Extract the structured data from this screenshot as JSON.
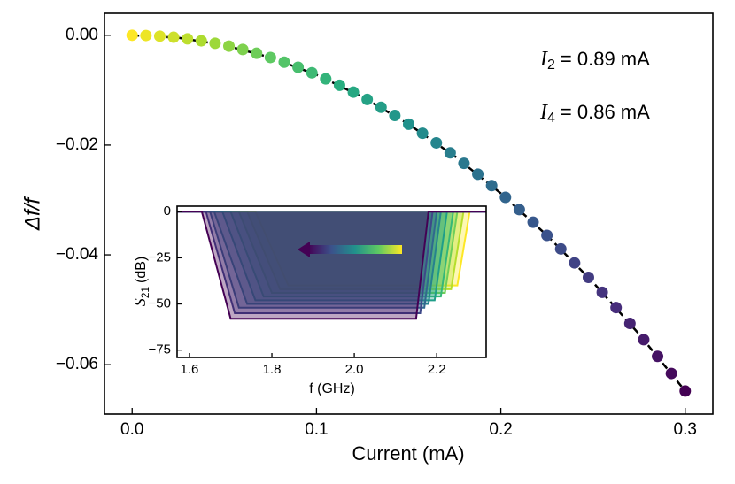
{
  "chart_data": [
    {
      "type": "scatter",
      "xlabel": "Current (mA)",
      "ylabel": "Δf/f",
      "xlim": [
        -0.015,
        0.315
      ],
      "ylim": [
        -0.069,
        0.004
      ],
      "xticks": [
        {
          "value": 0,
          "label": "0.0"
        },
        0.1,
        0.2,
        0.3
      ],
      "yticks": [
        {
          "value": 0,
          "label": "0.00"
        },
        {
          "value": -0.02,
          "label": "−0.02"
        },
        {
          "value": -0.04,
          "label": "−0.04"
        },
        {
          "value": -0.06,
          "label": "−0.06"
        }
      ],
      "colormap": "viridis_r",
      "x": [
        0,
        0.0075,
        0.015,
        0.0225,
        0.03,
        0.0375,
        0.045,
        0.0525,
        0.06,
        0.0675,
        0.075,
        0.0825,
        0.09,
        0.0975,
        0.105,
        0.1125,
        0.12,
        0.1275,
        0.135,
        0.1425,
        0.15,
        0.1575,
        0.165,
        0.1725,
        0.18,
        0.1875,
        0.195,
        0.2025,
        0.21,
        0.2175,
        0.225,
        0.2325,
        0.24,
        0.2475,
        0.255,
        0.2625,
        0.27,
        0.2775,
        0.285,
        0.2925,
        0.3
      ],
      "values": [
        0,
        -4e-05,
        -0.00016,
        -0.00036,
        -0.00065,
        -0.00101,
        -0.00146,
        -0.00198,
        -0.00259,
        -0.00328,
        -0.00405,
        -0.0049,
        -0.00583,
        -0.00684,
        -0.00794,
        -0.00911,
        -0.01037,
        -0.0117,
        -0.01312,
        -0.01462,
        -0.0162,
        -0.01786,
        -0.0196,
        -0.02142,
        -0.02333,
        -0.02531,
        -0.02738,
        -0.02952,
        -0.03175,
        -0.03406,
        -0.03645,
        -0.03892,
        -0.04147,
        -0.0441,
        -0.04682,
        -0.04961,
        -0.05249,
        -0.05544,
        -0.05848,
        -0.0616,
        -0.0648
      ],
      "fit": {
        "color": "#000000",
        "style": "dashed",
        "x": [
          0,
          0.025,
          0.05,
          0.075,
          0.1,
          0.125,
          0.15,
          0.175,
          0.2,
          0.225,
          0.25,
          0.275,
          0.3
        ],
        "values": [
          0,
          -0.00045,
          -0.0018,
          -0.00405,
          -0.0072,
          -0.01125,
          -0.0162,
          -0.02205,
          -0.0288,
          -0.03645,
          -0.045,
          -0.05445,
          -0.0648
        ]
      },
      "annotations": [
        {
          "symbol": "I",
          "subscript": "2",
          "text": "= 0.89 mA"
        },
        {
          "symbol": "I",
          "subscript": "4",
          "text": "= 0.86 mA"
        }
      ]
    },
    {
      "type": "line",
      "xlabel": "f (GHz)",
      "ylabel": {
        "symbol": "S",
        "subscript": "21",
        "text": "(dB)"
      },
      "xlim": [
        1.57,
        2.32
      ],
      "ylim": [
        -79,
        3
      ],
      "xticks": [
        1.6,
        1.8,
        {
          "value": 2,
          "label": "2.0"
        },
        2.2
      ],
      "yticks": [
        0,
        {
          "value": -25,
          "label": "−25"
        },
        {
          "value": -50,
          "label": "−50"
        },
        {
          "value": -75,
          "label": "−75"
        }
      ],
      "series": [
        {
          "color": "#fde725",
          "x": [
            1.57,
            1.76,
            1.84,
            2.25,
            2.28,
            2.32
          ],
          "values": [
            0,
            0,
            -40,
            -40,
            0,
            0
          ]
        },
        {
          "color": "#b5de2b",
          "x": [
            1.57,
            1.74,
            1.82,
            2.235,
            2.265,
            2.32
          ],
          "values": [
            0,
            0,
            -42,
            -42,
            0,
            0
          ]
        },
        {
          "color": "#6ece58",
          "x": [
            1.57,
            1.72,
            1.8,
            2.22,
            2.25,
            2.32
          ],
          "values": [
            0,
            0,
            -44,
            -44,
            0,
            0
          ]
        },
        {
          "color": "#35b779",
          "x": [
            1.57,
            1.7,
            1.78,
            2.21,
            2.24,
            2.32
          ],
          "values": [
            0,
            0,
            -46,
            -46,
            0,
            0
          ]
        },
        {
          "color": "#1f9e89",
          "x": [
            1.57,
            1.68,
            1.76,
            2.195,
            2.225,
            2.32
          ],
          "values": [
            0,
            0,
            -48,
            -48,
            0,
            0
          ]
        },
        {
          "color": "#26828e",
          "x": [
            1.57,
            1.66,
            1.74,
            2.18,
            2.21,
            2.32
          ],
          "values": [
            0,
            0,
            -50,
            -50,
            0,
            0
          ]
        },
        {
          "color": "#31688e",
          "x": [
            1.57,
            1.65,
            1.72,
            2.17,
            2.2,
            2.32
          ],
          "values": [
            0,
            0,
            -52,
            -52,
            0,
            0
          ]
        },
        {
          "color": "#3e4989",
          "x": [
            1.57,
            1.64,
            1.71,
            2.16,
            2.19,
            2.32
          ],
          "values": [
            0,
            0,
            -55,
            -55,
            0,
            0
          ]
        },
        {
          "color": "#440154",
          "x": [
            1.57,
            1.63,
            1.7,
            2.15,
            2.18,
            2.32
          ],
          "values": [
            0,
            0,
            -58,
            -58,
            0,
            0
          ]
        }
      ]
    }
  ]
}
